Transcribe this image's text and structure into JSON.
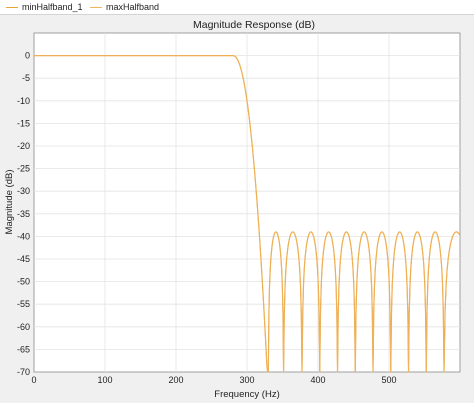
{
  "legend": {
    "items": [
      {
        "label": "minHalfband_1",
        "color": "#e7a33a"
      },
      {
        "label": "maxHalfband",
        "color": "#f0b35a"
      }
    ]
  },
  "chart_data": {
    "type": "line",
    "title": "Magnitude Response (dB)",
    "xlabel": "Frequency (Hz)",
    "ylabel": "Magnitude (dB)",
    "xlim": [
      0,
      600
    ],
    "ylim": [
      -70,
      5
    ],
    "xticks": [
      0,
      100,
      200,
      300,
      400,
      500
    ],
    "yticks": [
      0,
      -5,
      -10,
      -15,
      -20,
      -25,
      -30,
      -35,
      -40,
      -45,
      -50,
      -55,
      -60,
      -65,
      -70
    ],
    "grid": true,
    "legend_position": "top",
    "series": [
      {
        "name": "minHalfband_1",
        "color": "#e7a33a",
        "passband_db": 0,
        "passband_edge_hz": 280,
        "stopband_edge_hz": 330,
        "stopband_ripple_db": -39,
        "stopband_lobe_peaks_hz": [
          338,
          365,
          390,
          415,
          440,
          465,
          490,
          515,
          540,
          565,
          590
        ]
      },
      {
        "name": "maxHalfband",
        "color": "#f0b35a",
        "passband_db": 0,
        "passband_edge_hz": 280,
        "stopband_edge_hz": 330,
        "stopband_ripple_db": -39,
        "stopband_lobe_peaks_hz": [
          338,
          365,
          390,
          415,
          440,
          465,
          490,
          515,
          540,
          565,
          590
        ]
      }
    ]
  }
}
